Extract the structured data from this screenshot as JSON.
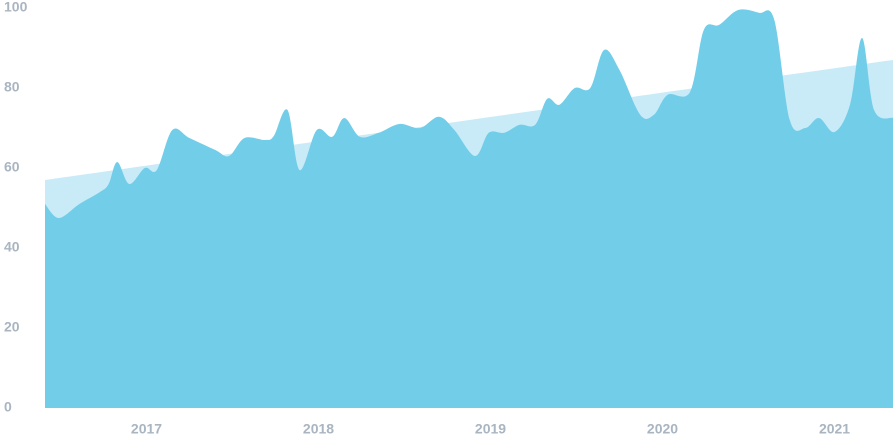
{
  "chart_data": {
    "type": "area",
    "series": [
      {
        "color": "#c8ebf7",
        "x": [
          2016.41,
          2021.34
        ],
        "values": [
          57,
          87
        ]
      },
      {
        "color": "#72cde9",
        "x": [
          2016.41,
          2016.49,
          2016.61,
          2016.73,
          2016.78,
          2016.83,
          2016.9,
          2016.99,
          2017.06,
          2017.15,
          2017.25,
          2017.4,
          2017.48,
          2017.57,
          2017.69,
          2017.74,
          2017.82,
          2017.89,
          2017.99,
          2018.08,
          2018.15,
          2018.24,
          2018.35,
          2018.47,
          2018.59,
          2018.7,
          2018.79,
          2018.91,
          2018.99,
          2019.08,
          2019.17,
          2019.26,
          2019.33,
          2019.4,
          2019.49,
          2019.58,
          2019.66,
          2019.75,
          2019.87,
          2019.95,
          2020.03,
          2020.16,
          2020.24,
          2020.33,
          2020.44,
          2020.56,
          2020.65,
          2020.74,
          2020.83,
          2020.91,
          2021.0,
          2021.09,
          2021.16,
          2021.23,
          2021.34
        ],
        "values": [
          51,
          47.5,
          51,
          54,
          56,
          61.5,
          56,
          60,
          59.5,
          69.5,
          67.5,
          64.5,
          63,
          67.5,
          67,
          68,
          74.5,
          59.5,
          69.5,
          67.8,
          72.5,
          67.8,
          68.8,
          71,
          70,
          72.8,
          69.5,
          63,
          68.8,
          68.8,
          70.8,
          70.8,
          77.3,
          75.8,
          80,
          80,
          89.5,
          84.5,
          73.3,
          73.3,
          78.3,
          79,
          94.5,
          95.8,
          99.5,
          98.8,
          97,
          72,
          70,
          72.5,
          69,
          75.8,
          92.5,
          74.5,
          72.5
        ]
      }
    ],
    "xlim": [
      2016.41,
      2021.34
    ],
    "xticks": [
      2017,
      2018,
      2019,
      2020,
      2021
    ],
    "ylim": [
      0,
      100
    ],
    "yticks": [
      0,
      20,
      40,
      60,
      80,
      100
    ]
  }
}
